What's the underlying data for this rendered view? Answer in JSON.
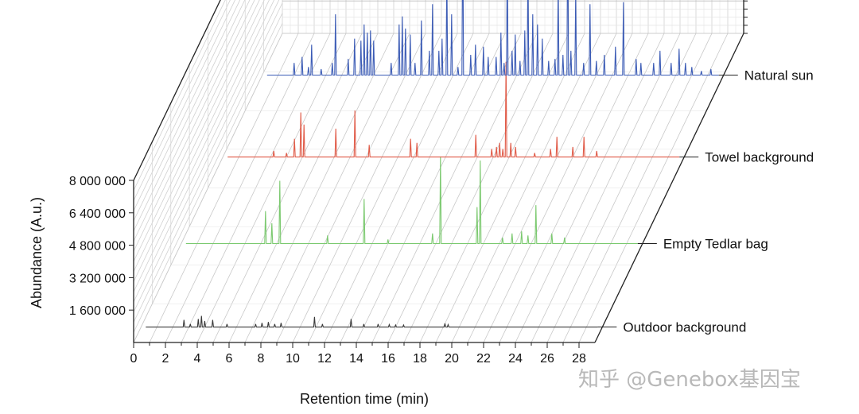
{
  "chart_data": {
    "type": "line",
    "subtype": "3d-waterfall",
    "title": "",
    "xlabel": "Retention time (min)",
    "ylabel": "Abundance (A.u.)",
    "xlim": [
      0,
      29
    ],
    "ylim": [
      0,
      8000000
    ],
    "x_ticks": [
      "0",
      "2",
      "4",
      "6",
      "8",
      "10",
      "12",
      "14",
      "16",
      "18",
      "20",
      "22",
      "24",
      "26",
      "28"
    ],
    "y_ticks": [
      "1 600 000",
      "3 200 000",
      "4 800 000",
      "6 400 000",
      "8 000 000"
    ],
    "y_tick_values": [
      1600000,
      3200000,
      4800000,
      6400000,
      8000000
    ],
    "grid": true,
    "series": [
      {
        "name": "Outdoor background",
        "color": "#3a3a3a",
        "peaks": [
          [
            2.7,
            350000
          ],
          [
            3.1,
            150000
          ],
          [
            3.6,
            400000
          ],
          [
            3.8,
            550000
          ],
          [
            4.0,
            300000
          ],
          [
            4.5,
            350000
          ],
          [
            5.4,
            150000
          ],
          [
            7.2,
            150000
          ],
          [
            7.6,
            200000
          ],
          [
            8.0,
            250000
          ],
          [
            8.4,
            150000
          ],
          [
            8.8,
            200000
          ],
          [
            10.9,
            500000
          ],
          [
            11.4,
            150000
          ],
          [
            13.2,
            400000
          ],
          [
            14.0,
            150000
          ],
          [
            14.9,
            150000
          ],
          [
            15.6,
            120000
          ],
          [
            16.0,
            100000
          ],
          [
            16.5,
            100000
          ],
          [
            19.1,
            180000
          ],
          [
            19.3,
            120000
          ]
        ]
      },
      {
        "name": "Empty Tedlar bag",
        "color": "#7bc96f",
        "peaks": [
          [
            5.3,
            1600000
          ],
          [
            5.7,
            1000000
          ],
          [
            6.2,
            3100000
          ],
          [
            9.2,
            400000
          ],
          [
            11.5,
            2200000
          ],
          [
            13.0,
            200000
          ],
          [
            15.8,
            500000
          ],
          [
            16.3,
            4300000
          ],
          [
            18.6,
            1800000
          ],
          [
            18.8,
            4100000
          ],
          [
            20.2,
            300000
          ],
          [
            20.8,
            500000
          ],
          [
            21.4,
            600000
          ],
          [
            21.8,
            400000
          ],
          [
            22.3,
            1900000
          ],
          [
            23.3,
            500000
          ],
          [
            24.1,
            300000
          ]
        ]
      },
      {
        "name": "Towel background",
        "color": "#e05a47",
        "peaks": [
          [
            3.2,
            300000
          ],
          [
            4.0,
            200000
          ],
          [
            4.5,
            900000
          ],
          [
            4.9,
            2200000
          ],
          [
            5.1,
            1600000
          ],
          [
            7.1,
            1400000
          ],
          [
            8.3,
            2300000
          ],
          [
            9.2,
            600000
          ],
          [
            11.8,
            900000
          ],
          [
            12.2,
            700000
          ],
          [
            15.9,
            1100000
          ],
          [
            16.9,
            400000
          ],
          [
            17.2,
            500000
          ],
          [
            17.4,
            700000
          ],
          [
            17.6,
            400000
          ],
          [
            17.8,
            4700000
          ],
          [
            18.1,
            700000
          ],
          [
            18.4,
            500000
          ],
          [
            19.6,
            200000
          ],
          [
            20.6,
            400000
          ],
          [
            21.0,
            1000000
          ],
          [
            22.0,
            500000
          ],
          [
            22.7,
            1000000
          ],
          [
            23.5,
            300000
          ]
        ]
      },
      {
        "name": "Natural sun",
        "color": "#3b5bb5",
        "peaks": [
          [
            2.0,
            600000
          ],
          [
            2.5,
            900000
          ],
          [
            2.9,
            400000
          ],
          [
            3.1,
            1500000
          ],
          [
            3.7,
            300000
          ],
          [
            4.4,
            600000
          ],
          [
            4.6,
            3000000
          ],
          [
            5.4,
            800000
          ],
          [
            5.8,
            1800000
          ],
          [
            6.2,
            1700000
          ],
          [
            6.4,
            2500000
          ],
          [
            6.6,
            2100000
          ],
          [
            6.8,
            2200000
          ],
          [
            7.0,
            1700000
          ],
          [
            8.1,
            600000
          ],
          [
            8.6,
            2500000
          ],
          [
            8.8,
            2900000
          ],
          [
            9.0,
            2300000
          ],
          [
            9.3,
            2000000
          ],
          [
            9.6,
            600000
          ],
          [
            10.0,
            2700000
          ],
          [
            10.5,
            1200000
          ],
          [
            10.7,
            3500000
          ],
          [
            11.1,
            1200000
          ],
          [
            11.3,
            1800000
          ],
          [
            11.6,
            5200000
          ],
          [
            11.9,
            3000000
          ],
          [
            12.3,
            400000
          ],
          [
            12.6,
            8300000
          ],
          [
            13.1,
            1000000
          ],
          [
            13.4,
            1500000
          ],
          [
            13.9,
            1400000
          ],
          [
            14.2,
            900000
          ],
          [
            14.7,
            900000
          ],
          [
            15.0,
            2100000
          ],
          [
            15.2,
            600000
          ],
          [
            15.4,
            6300000
          ],
          [
            15.7,
            1200000
          ],
          [
            15.9,
            2000000
          ],
          [
            16.2,
            700000
          ],
          [
            16.5,
            2200000
          ],
          [
            16.7,
            5800000
          ],
          [
            17.0,
            3000000
          ],
          [
            17.3,
            2500000
          ],
          [
            17.6,
            1800000
          ],
          [
            18.0,
            700000
          ],
          [
            18.4,
            800000
          ],
          [
            18.6,
            4700000
          ],
          [
            18.9,
            1000000
          ],
          [
            19.2,
            8300000
          ],
          [
            19.4,
            1200000
          ],
          [
            19.7,
            4100000
          ],
          [
            20.2,
            600000
          ],
          [
            20.6,
            3500000
          ],
          [
            21.0,
            700000
          ],
          [
            21.5,
            1000000
          ],
          [
            22.2,
            1400000
          ],
          [
            22.7,
            3600000
          ],
          [
            23.5,
            800000
          ],
          [
            23.8,
            600000
          ],
          [
            24.6,
            600000
          ],
          [
            25.0,
            1200000
          ],
          [
            25.7,
            600000
          ],
          [
            26.2,
            1300000
          ],
          [
            26.6,
            600000
          ],
          [
            27.0,
            400000
          ],
          [
            27.6,
            200000
          ],
          [
            28.2,
            300000
          ]
        ]
      }
    ]
  },
  "watermark": "知乎 @Genebox基因宝"
}
